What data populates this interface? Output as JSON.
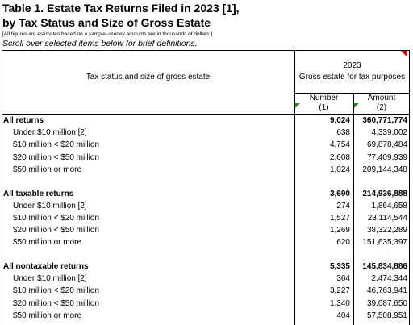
{
  "header": {
    "title_line1": "Table 1. Estate Tax Returns Filed in 2023 [1],",
    "title_line2": "by Tax Status and Size of Gross Estate",
    "note": "[All figures are estimates based on a sample--money amounts are in thousands of dollars.]",
    "scroll_hint": "Scroll over selected items below for brief definitions."
  },
  "table": {
    "stub_header": "Tax status and size of gross estate",
    "year": "2023",
    "span_header": "Gross estate for tax purposes",
    "columns": [
      {
        "label": "Number",
        "code": "(1)"
      },
      {
        "label": "Amount",
        "code": "(2)"
      }
    ],
    "groups": [
      [
        [
          "All returns",
          "9,024",
          "360,771,774"
        ],
        [
          "Under $10 million [2]",
          "638",
          "4,339,002"
        ],
        [
          "$10 million < $20 million",
          "4,754",
          "69,878,484"
        ],
        [
          "$20 million < $50 million",
          "2,608",
          "77,409,939"
        ],
        [
          "$50 million or more",
          "1,024",
          "209,144,348"
        ]
      ],
      [
        [
          "All taxable returns",
          "3,690",
          "214,936,888"
        ],
        [
          "Under $10 million [2]",
          "274",
          "1,864,658"
        ],
        [
          "$10 million < $20 million",
          "1,527",
          "23,114,544"
        ],
        [
          "$20 million < $50 million",
          "1,269",
          "38,322,289"
        ],
        [
          "$50 million or more",
          "620",
          "151,635,397"
        ]
      ],
      [
        [
          "All nontaxable returns",
          "5,335",
          "145,834,886"
        ],
        [
          "Under $10 million [2]",
          "364",
          "2,474,344"
        ],
        [
          "$10 million < $20 million",
          "3,227",
          "46,763,941"
        ],
        [
          "$20 million < $50 million",
          "1,340",
          "39,087,650"
        ],
        [
          "$50 million or more",
          "404",
          "57,508,951"
        ]
      ]
    ]
  }
}
